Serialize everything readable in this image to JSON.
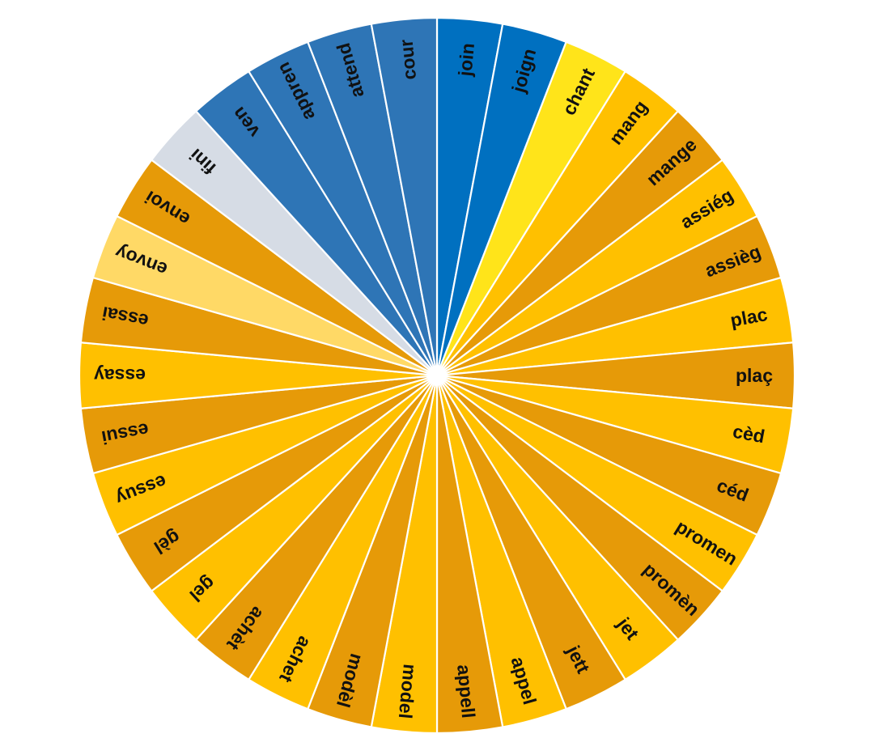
{
  "wheel": {
    "segments": [
      {
        "label": "join",
        "color": "#0070C0"
      },
      {
        "label": "joign",
        "color": "#0070C0"
      },
      {
        "label": "chant",
        "color": "#FFE41A"
      },
      {
        "label": "mang",
        "color": "#FFC000"
      },
      {
        "label": "mange",
        "color": "#E69A08"
      },
      {
        "label": "assiég",
        "color": "#FFC000"
      },
      {
        "label": "assièg",
        "color": "#E69A08"
      },
      {
        "label": "plac",
        "color": "#FFC000"
      },
      {
        "label": "plaç",
        "color": "#E69A08"
      },
      {
        "label": "cèd",
        "color": "#FFC000"
      },
      {
        "label": "céd",
        "color": "#E69A08"
      },
      {
        "label": "promen",
        "color": "#FFC000"
      },
      {
        "label": "promèn",
        "color": "#E69A08"
      },
      {
        "label": "jet",
        "color": "#FFC000"
      },
      {
        "label": "jett",
        "color": "#E69A08"
      },
      {
        "label": "appel",
        "color": "#FFC000"
      },
      {
        "label": "appell",
        "color": "#E69A08"
      },
      {
        "label": "model",
        "color": "#FFC000"
      },
      {
        "label": "modèl",
        "color": "#E69A08"
      },
      {
        "label": "achet",
        "color": "#FFC000"
      },
      {
        "label": "achèt",
        "color": "#E69A08"
      },
      {
        "label": "gel",
        "color": "#FFC000"
      },
      {
        "label": "gèl",
        "color": "#E69A08"
      },
      {
        "label": "essuy",
        "color": "#FFC000"
      },
      {
        "label": "essui",
        "color": "#E69A08"
      },
      {
        "label": "essay",
        "color": "#FFC000"
      },
      {
        "label": "essai",
        "color": "#E69A08"
      },
      {
        "label": "envoy",
        "color": "#FFD966"
      },
      {
        "label": "envoi",
        "color": "#E69A08"
      },
      {
        "label": "fini",
        "color": "#D6DCE5"
      },
      {
        "label": "ven",
        "color": "#2E75B6"
      },
      {
        "label": "appren",
        "color": "#2E75B6"
      },
      {
        "label": "attend",
        "color": "#2E75B6"
      },
      {
        "label": "cour",
        "color": "#2E75B6"
      }
    ]
  }
}
